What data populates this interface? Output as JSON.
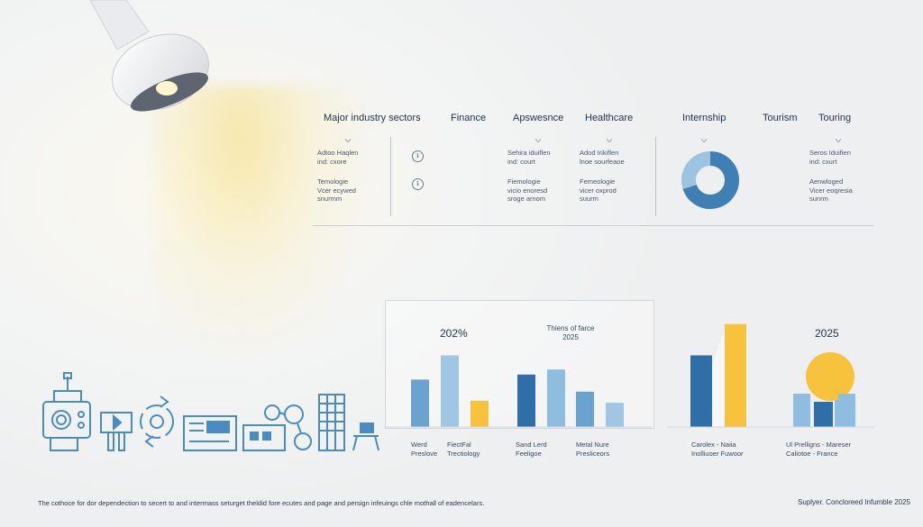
{
  "header": {
    "items": [
      "Major industry sectors",
      "Finance",
      "Apswesnce",
      "Healthcare",
      "Internship",
      "Tourism",
      "Touring"
    ]
  },
  "notes": {
    "col1": [
      [
        "Adtoo Haqlen",
        "ind: cxore"
      ],
      [
        "Temologie",
        "Vcer ecywed",
        "snurmm"
      ]
    ],
    "col2": [
      [
        "Sehira iduiflen",
        "ind: court"
      ],
      [
        "Fiemologie",
        "vicio enoresd",
        "sroge arnom"
      ]
    ],
    "col3": [
      [
        "Adod Irikiflen",
        "lnoe sourfeaoe"
      ],
      [
        "Femeologie",
        "vicer oxprod",
        "suurm"
      ]
    ],
    "col4": [
      [
        "Seros Iduifien",
        "ind: cxurt"
      ],
      [
        "Aenwloged",
        "Vicer eoqresia",
        "sunrm"
      ]
    ]
  },
  "panel": {
    "left_value": "202%",
    "subtitle_line1": "Thiens of farce",
    "subtitle_line2": "2025",
    "right_value": "2025"
  },
  "categories_text": [
    [
      "Werd",
      "Preslove"
    ],
    [
      "FiectFal",
      "Trectiology"
    ],
    [
      "Sand Lerd",
      "Feeligoe"
    ],
    [
      "Metal Nure",
      "Presliceors"
    ],
    [
      "Carolex - Naiia",
      "Inolliuoer Fuwoor"
    ],
    [
      "Ul Prelligns - Mareser",
      "Caliotoe - France"
    ]
  ],
  "chart_data": [
    {
      "type": "pie",
      "title": "",
      "values": [
        70,
        30
      ],
      "colors": [
        "#3f7fb4",
        "#9cc3e0"
      ]
    },
    {
      "type": "bar",
      "ylim": [
        0,
        100
      ],
      "groups": [
        {
          "values": [
            47,
            71,
            26
          ],
          "colors": [
            "#6aa3d0",
            "#9fc6e3",
            "#f7c23c"
          ]
        },
        {
          "values": [
            52,
            57
          ],
          "colors": [
            "#2f6ea6",
            "#8fbde0"
          ]
        },
        {
          "values": [
            35,
            24
          ],
          "colors": [
            "#6aa3d0",
            "#9fc6e3"
          ]
        },
        {
          "values": [
            71,
            102
          ],
          "colors": [
            "#2f6ea6",
            "#f7c23c"
          ]
        },
        {
          "values": [
            33,
            25,
            33
          ],
          "colors": [
            "#8fbde0",
            "#2f6ea6",
            "#8fbde0"
          ]
        }
      ],
      "highlight_circle_color": "#f7c23c"
    }
  ],
  "footer": {
    "left": "The cothoce for dor dependection to secert to and intermass seturget theldid fore ecutes and page and persign infeuings chle mothall of eadencelars.",
    "right": "Suplyer. Concloreed Infumble 2025"
  },
  "colors": {
    "accent_blue": "#3f7fb4",
    "accent_yellow": "#f7c23c",
    "icon_blue": "#4b8bc4"
  }
}
